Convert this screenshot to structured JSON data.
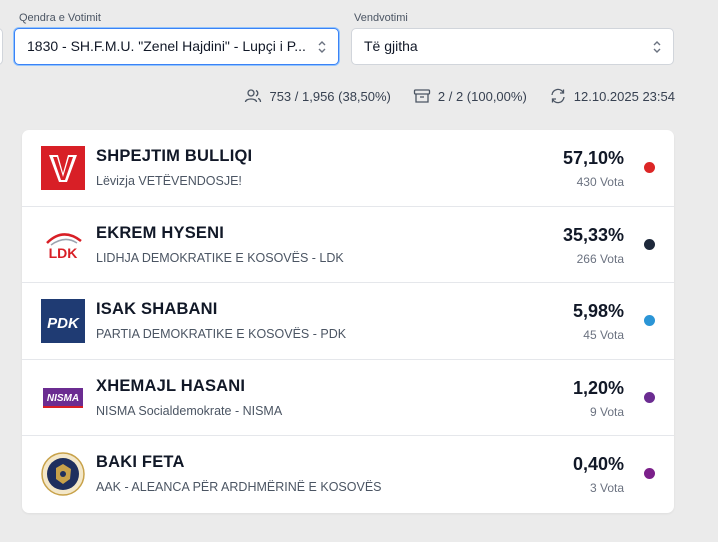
{
  "filters": {
    "center_label": "Qendra e Votimit",
    "center_value": "1830 - SH.F.M.U. \"Zenel Hajdini\" - Lupçi i P...",
    "station_label": "Vendvotimi",
    "station_value": "Të gjitha"
  },
  "stats": {
    "turnout": "753 / 1,956 (38,50%)",
    "boxes": "2 / 2 (100,00%)",
    "updated": "12.10.2025 23:54"
  },
  "candidates": [
    {
      "name": "SHPEJTIM BULLIQI",
      "party": "Lëvizja VETËVENDOSJE!",
      "percent": "57,10%",
      "votes": "430 Vota",
      "color": "#dc2626",
      "logo": "vetevendosje-logo"
    },
    {
      "name": "EKREM HYSENI",
      "party": "LIDHJA DEMOKRATIKE E KOSOVËS - LDK",
      "percent": "35,33%",
      "votes": "266 Vota",
      "color": "#1e293b",
      "logo": "ldk-logo",
      "logo_text": "LDK"
    },
    {
      "name": "ISAK SHABANI",
      "party": "PARTIA DEMOKRATIKE E KOSOVËS - PDK",
      "percent": "5,98%",
      "votes": "45 Vota",
      "color": "#2b95d6",
      "logo": "pdk-logo",
      "logo_text": "PDK"
    },
    {
      "name": "XHEMAJL HASANI",
      "party": "NISMA Socialdemokrate - NISMA",
      "percent": "1,20%",
      "votes": "9 Vota",
      "color": "#6b2c91",
      "logo": "nisma-logo",
      "logo_text": "NISMA"
    },
    {
      "name": "BAKI FETA",
      "party": "AAK - ALEANCA PËR ARDHMËRINË E KOSOVËS",
      "percent": "0,40%",
      "votes": "3 Vota",
      "color": "#7b1f8a",
      "logo": "aak-logo"
    }
  ]
}
